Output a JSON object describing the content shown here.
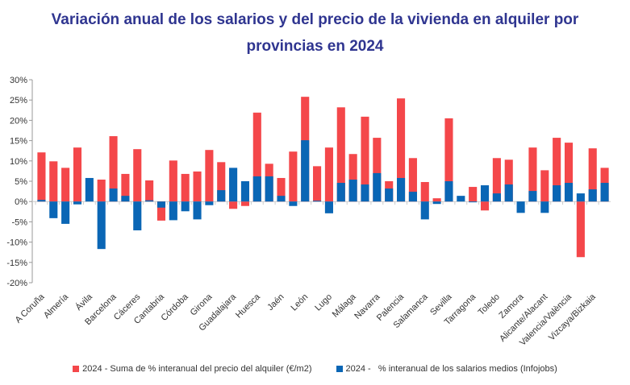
{
  "chart_data": {
    "type": "bar",
    "title": "Variación anual de los salarios y del precio de la vivienda en alquiler por provincias en 2024",
    "xlabel": "",
    "ylabel": "",
    "ylim": [
      -20,
      30
    ],
    "yticks": [
      "30%",
      "25%",
      "20%",
      "15%",
      "10%",
      "5%",
      "0%",
      "-5%",
      "-10%",
      "-15%",
      "-20%"
    ],
    "ytick_values": [
      30,
      25,
      20,
      15,
      10,
      5,
      0,
      -5,
      -10,
      -15,
      -20
    ],
    "grid": false,
    "legend": "bottom",
    "categories": [
      "A Coruña",
      "",
      "Almería",
      "",
      "Ávila",
      "",
      "Barcelona",
      "",
      "Cáceres",
      "",
      "Cantabria",
      "",
      "Córdoba",
      "",
      "Girona",
      "",
      "Guadalajara",
      "",
      "Huesca",
      "",
      "Jaén",
      "",
      "León",
      "",
      "Lugo",
      "",
      "Málaga",
      "",
      "Navarra",
      "",
      "Palencia",
      "",
      "Salamanca",
      "",
      "Sevilla",
      "",
      "Tarragona",
      "",
      "Toledo",
      "",
      "Zamora",
      "",
      "Alicante/Alacant",
      "",
      "Valencia/València",
      "",
      "Vizcaya/Bizkaia",
      ""
    ],
    "series": [
      {
        "name": "2024 - Suma de % interanual del precio del alquiler (€/m2)",
        "color": "#F4474A",
        "values": [
          12.1,
          9.9,
          8.3,
          13.3,
          0,
          5.4,
          16.1,
          6.8,
          12.9,
          5.2,
          -4.7,
          10.1,
          6.8,
          7.4,
          12.7,
          9.7,
          -1.8,
          -1.1,
          21.9,
          9.3,
          5.8,
          12.3,
          25.8,
          8.7,
          13.3,
          23.2,
          11.7,
          20.9,
          15.7,
          5.0,
          25.4,
          10.7,
          4.8,
          0.8,
          20.5,
          0,
          3.6,
          -2.2,
          10.7,
          10.3,
          0,
          13.3,
          7.7,
          15.7,
          14.5,
          -13.7,
          13.1,
          8.3
        ]
      },
      {
        "name": "2024 -   % interanual de los salarios medios (Infojobs)",
        "color": "#0A66B5",
        "values": [
          0.4,
          -4.1,
          -5.5,
          -0.7,
          5.8,
          -11.7,
          3.2,
          1.4,
          -7.1,
          0.3,
          -1.5,
          -4.6,
          -2.4,
          -4.4,
          -0.9,
          2.8,
          8.3,
          5.0,
          6.2,
          6.2,
          1.4,
          -1.1,
          15.1,
          0.2,
          -2.9,
          4.6,
          5.4,
          4.2,
          7.0,
          3.2,
          5.8,
          2.4,
          -4.4,
          -0.6,
          5.0,
          1.4,
          -0.2,
          4.0,
          2.0,
          4.2,
          -2.8,
          2.6,
          -2.8,
          4.0,
          4.6,
          2.0,
          3.0,
          4.6
        ]
      }
    ]
  },
  "title_lines": [
    "Variación anual de los salarios y del precio de la vivienda en alquiler por",
    "provincias en 2024"
  ]
}
